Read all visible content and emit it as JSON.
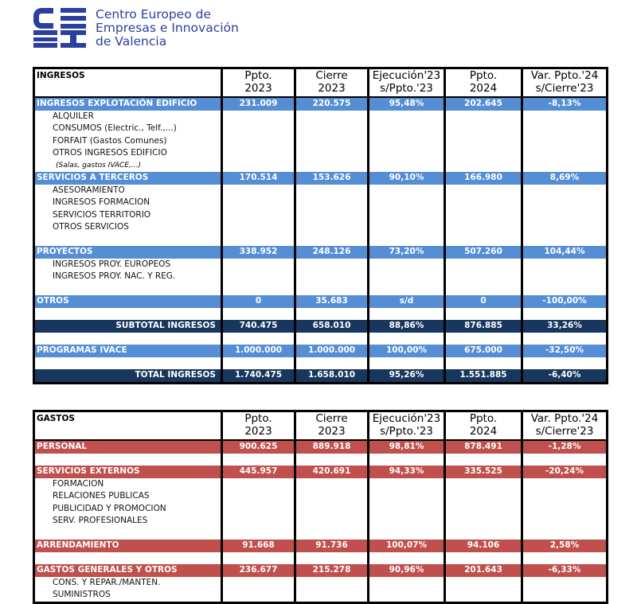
{
  "logo": {
    "letters": "CEEI",
    "line1": "Centro Europeo de",
    "line2": "Empresas e Innovación",
    "line3": "de Valencia",
    "color": "#2b3f9e"
  },
  "colors": {
    "ingresos_section": "#558ed5",
    "total": "#17375e",
    "gastos_section": "#c0504d"
  },
  "columns": [
    "Ppto.\n2023",
    "Cierre\n2023",
    "Ejecución'23\ns/Ppto.'23",
    "Ppto.\n2024",
    "Var. Ppto.'24\ns/Cierre'23"
  ],
  "ingresos": {
    "title": "INGRESOS",
    "rows": [
      {
        "type": "sec",
        "label": "INGRESOS EXPLOTACIÓN EDIFICIO",
        "values": [
          "231.009",
          "220.575",
          "95,48%",
          "202.645",
          "-8,13%"
        ]
      },
      {
        "type": "sub",
        "label": "ALQUILER"
      },
      {
        "type": "sub",
        "label": "CONSUMOS (Electric., Telf.,...)"
      },
      {
        "type": "sub",
        "label": "FORFAIT (Gastos Comunes)"
      },
      {
        "type": "sub",
        "label": "OTROS INGRESOS EDIFICIO"
      },
      {
        "type": "note",
        "label": "(Salas, gastos IVACE,...)"
      },
      {
        "type": "sec",
        "label": "SERVICIOS A TERCEROS",
        "values": [
          "170.514",
          "153.626",
          "90,10%",
          "166.980",
          "8,69%"
        ]
      },
      {
        "type": "sub",
        "label": "ASESORAMIENTO"
      },
      {
        "type": "sub",
        "label": "INGRESOS FORMACION"
      },
      {
        "type": "sub",
        "label": "SERVICIOS TERRITORIO"
      },
      {
        "type": "sub",
        "label": "OTROS SERVICIOS"
      },
      {
        "type": "blank"
      },
      {
        "type": "sec",
        "label": "PROYECTOS",
        "values": [
          "338.952",
          "248.126",
          "73,20%",
          "507.260",
          "104,44%"
        ]
      },
      {
        "type": "sub",
        "label": "INGRESOS PROY. EUROPEOS"
      },
      {
        "type": "sub",
        "label": "INGRESOS PROY. NAC. Y REG."
      },
      {
        "type": "blank"
      },
      {
        "type": "sec",
        "label": "OTROS",
        "values": [
          "0",
          "35.683",
          "s/d",
          "0",
          "-100,00%"
        ]
      },
      {
        "type": "blank"
      },
      {
        "type": "tot",
        "label": "SUBTOTAL INGRESOS",
        "values": [
          "740.475",
          "658.010",
          "88,86%",
          "876.885",
          "33,26%"
        ]
      },
      {
        "type": "blank"
      },
      {
        "type": "sec",
        "label": "PROGRAMAS IVACE",
        "values": [
          "1.000.000",
          "1.000.000",
          "100,00%",
          "675.000",
          "-32,50%"
        ]
      },
      {
        "type": "blank"
      },
      {
        "type": "tot",
        "label": "TOTAL INGRESOS",
        "values": [
          "1.740.475",
          "1.658.010",
          "95,26%",
          "1.551.885",
          "-6,40%"
        ]
      }
    ]
  },
  "gastos": {
    "title": "GASTOS",
    "rows": [
      {
        "type": "sec",
        "label": "PERSONAL",
        "values": [
          "900.625",
          "889.918",
          "98,81%",
          "878.491",
          "-1,28%"
        ]
      },
      {
        "type": "blank"
      },
      {
        "type": "sec",
        "label": "SERVICIOS EXTERNOS",
        "values": [
          "445.957",
          "420.691",
          "94,33%",
          "335.525",
          "-20,24%"
        ]
      },
      {
        "type": "sub",
        "label": "FORMACION"
      },
      {
        "type": "sub",
        "label": "RELACIONES PUBLICAS"
      },
      {
        "type": "sub",
        "label": "PUBLICIDAD Y PROMOCION"
      },
      {
        "type": "sub",
        "label": "SERV. PROFESIONALES"
      },
      {
        "type": "blank"
      },
      {
        "type": "sec",
        "label": "ARRENDAMIENTO",
        "values": [
          "91.668",
          "91.736",
          "100,07%",
          "94.106",
          "2,58%"
        ]
      },
      {
        "type": "blank"
      },
      {
        "type": "sec",
        "label": "GASTOS GENERALES Y OTROS",
        "values": [
          "236.677",
          "215.278",
          "90,96%",
          "201.643",
          "-6,33%"
        ]
      },
      {
        "type": "sub",
        "label": "CONS. Y REPAR./MANTEN."
      },
      {
        "type": "sub",
        "label": "SUMINISTROS"
      }
    ]
  }
}
